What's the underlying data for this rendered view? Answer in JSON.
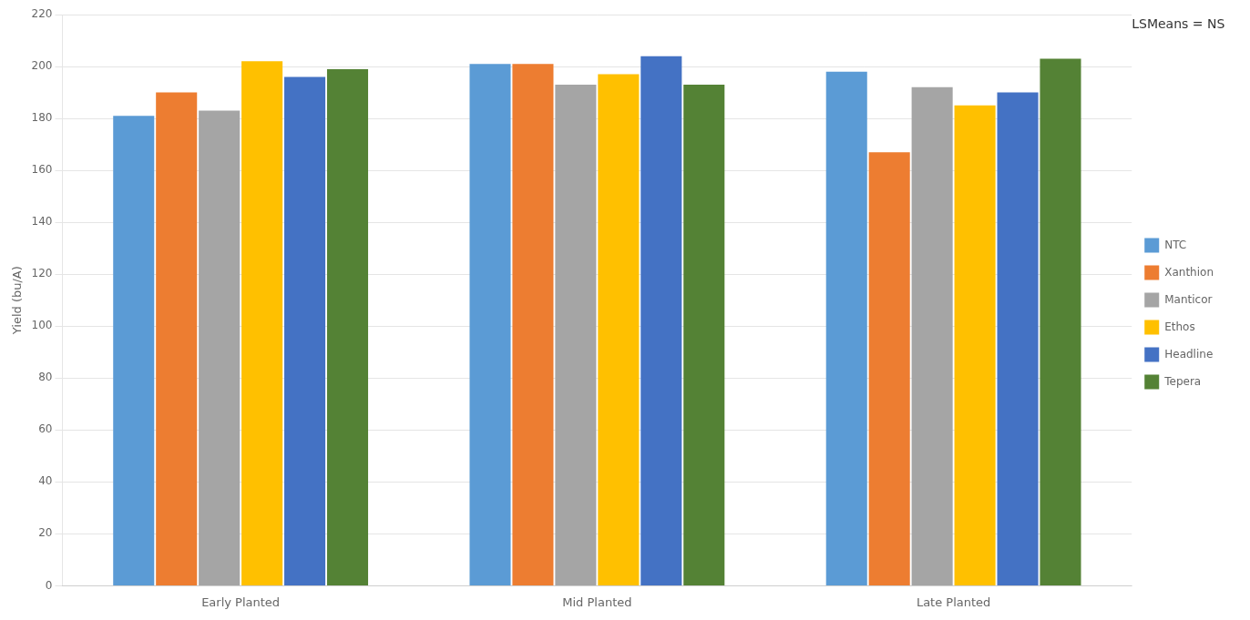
{
  "chart_data": {
    "type": "bar",
    "categories": [
      "Early Planted",
      "Mid Planted",
      "Late Planted"
    ],
    "series": [
      {
        "name": "NTC",
        "color": "#5B9BD5",
        "values": [
          181,
          201,
          198
        ]
      },
      {
        "name": "Xanthion",
        "color": "#ED7D31",
        "values": [
          190,
          201,
          167
        ]
      },
      {
        "name": "Manticor",
        "color": "#A5A5A5",
        "values": [
          183,
          193,
          192
        ]
      },
      {
        "name": "Ethos",
        "color": "#FFC000",
        "values": [
          202,
          197,
          185
        ]
      },
      {
        "name": "Headline",
        "color": "#4472C4",
        "values": [
          196,
          204,
          190
        ]
      },
      {
        "name": "Tepera",
        "color": "#548235",
        "values": [
          199,
          193,
          203
        ]
      }
    ],
    "ylabel": "Yield (bu/A)",
    "ylim": [
      0,
      220
    ],
    "yticks": [
      0,
      20,
      40,
      60,
      80,
      100,
      120,
      140,
      160,
      180,
      200,
      220
    ],
    "annotation": "LSMeans = NS",
    "grid": true,
    "legend": "right"
  }
}
